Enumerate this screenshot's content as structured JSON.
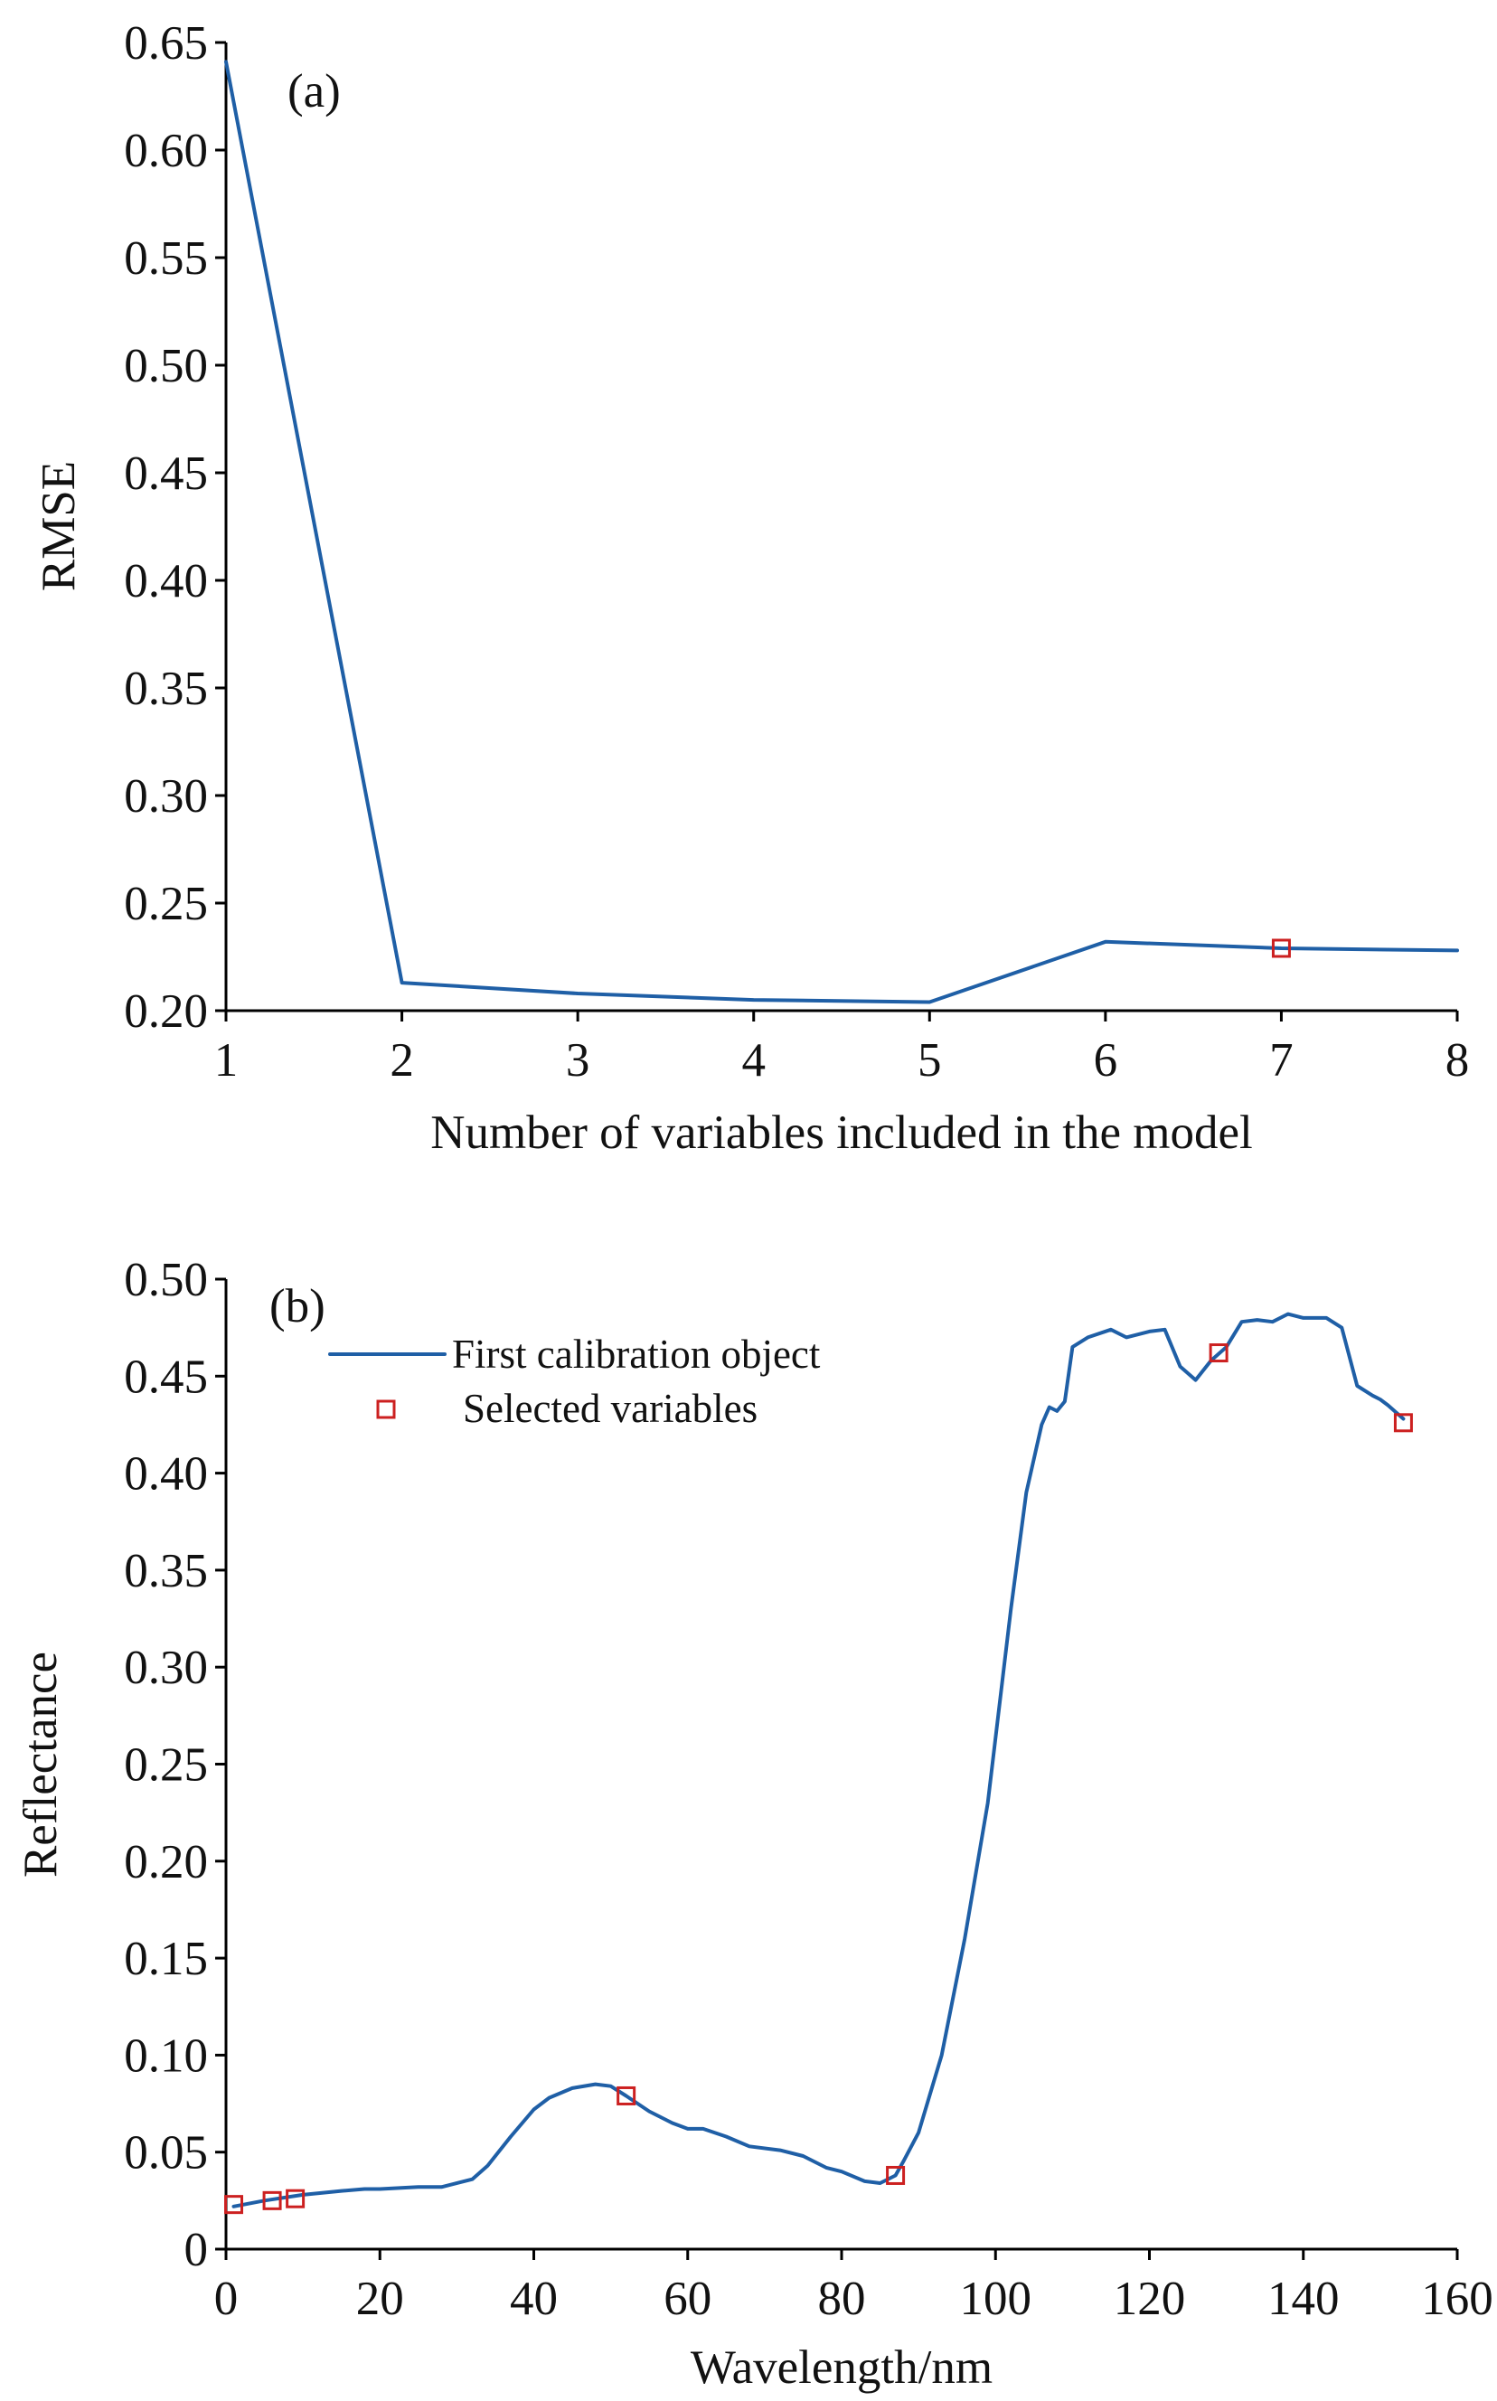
{
  "chart_data": [
    {
      "type": "line",
      "panel_label": "(a)",
      "xlabel": "Number of variables included in the model",
      "ylabel": "RMSE",
      "xlim": [
        1,
        8
      ],
      "ylim": [
        0.2,
        0.65
      ],
      "xticks": [
        1,
        2,
        3,
        4,
        5,
        6,
        7,
        8
      ],
      "yticks": [
        "0.20",
        "0.25",
        "0.30",
        "0.35",
        "0.40",
        "0.45",
        "0.50",
        "0.55",
        "0.60",
        "0.65"
      ],
      "grid": false,
      "series": [
        {
          "color": "#1f5fa6",
          "x": [
            1,
            2,
            3,
            4,
            5,
            6,
            7,
            8
          ],
          "y": [
            0.641,
            0.213,
            0.208,
            0.205,
            0.204,
            0.232,
            0.229,
            0.228
          ]
        }
      ],
      "markers": {
        "color": "#cc2020",
        "x": [
          7
        ],
        "y": [
          0.229
        ]
      }
    },
    {
      "type": "line",
      "panel_label": "(b)",
      "xlabel": "Wavelength/nm",
      "ylabel": "Reflectance",
      "xlim": [
        0,
        160
      ],
      "ylim": [
        0,
        0.5
      ],
      "xticks": [
        "0",
        "20",
        "40",
        "60",
        "80",
        "100",
        "120",
        "140",
        "160"
      ],
      "yticks": [
        "0",
        "0.05",
        "0.10",
        "0.15",
        "0.20",
        "0.25",
        "0.30",
        "0.35",
        "0.40",
        "0.45",
        "0.50"
      ],
      "grid": false,
      "legend": {
        "position": "top-left",
        "line_label": "First calibration object",
        "marker_label": "Selected variables"
      },
      "series": [
        {
          "name": "First calibration object",
          "color": "#1f5fa6",
          "x": [
            1,
            5,
            10,
            15,
            18,
            20,
            25,
            28,
            32,
            34,
            37,
            40,
            42,
            45,
            48,
            50,
            52,
            55,
            58,
            60,
            62,
            65,
            68,
            72,
            75,
            78,
            80,
            83,
            85,
            87,
            88,
            90,
            93,
            96,
            99,
            102,
            104,
            106,
            107,
            108,
            109,
            110,
            112,
            115,
            117,
            120,
            122,
            124,
            126,
            128,
            130,
            132,
            134,
            136,
            138,
            140,
            143,
            145,
            147,
            149,
            150,
            151,
            153
          ],
          "y": [
            0.022,
            0.025,
            0.028,
            0.03,
            0.031,
            0.031,
            0.032,
            0.032,
            0.036,
            0.043,
            0.058,
            0.072,
            0.078,
            0.083,
            0.085,
            0.084,
            0.079,
            0.071,
            0.065,
            0.062,
            0.062,
            0.058,
            0.053,
            0.051,
            0.048,
            0.042,
            0.04,
            0.035,
            0.034,
            0.038,
            0.045,
            0.06,
            0.1,
            0.16,
            0.23,
            0.33,
            0.39,
            0.425,
            0.434,
            0.432,
            0.437,
            0.465,
            0.47,
            0.474,
            0.47,
            0.473,
            0.474,
            0.455,
            0.448,
            0.458,
            0.465,
            0.478,
            0.479,
            0.478,
            0.482,
            0.48,
            0.48,
            0.475,
            0.445,
            0.44,
            0.438,
            0.435,
            0.428
          ]
        }
      ],
      "markers": {
        "name": "Selected variables",
        "color": "#cc2020",
        "x": [
          1,
          6,
          9,
          52,
          87,
          129,
          153
        ],
        "y": [
          0.023,
          0.025,
          0.026,
          0.079,
          0.038,
          0.462,
          0.426
        ]
      }
    }
  ]
}
